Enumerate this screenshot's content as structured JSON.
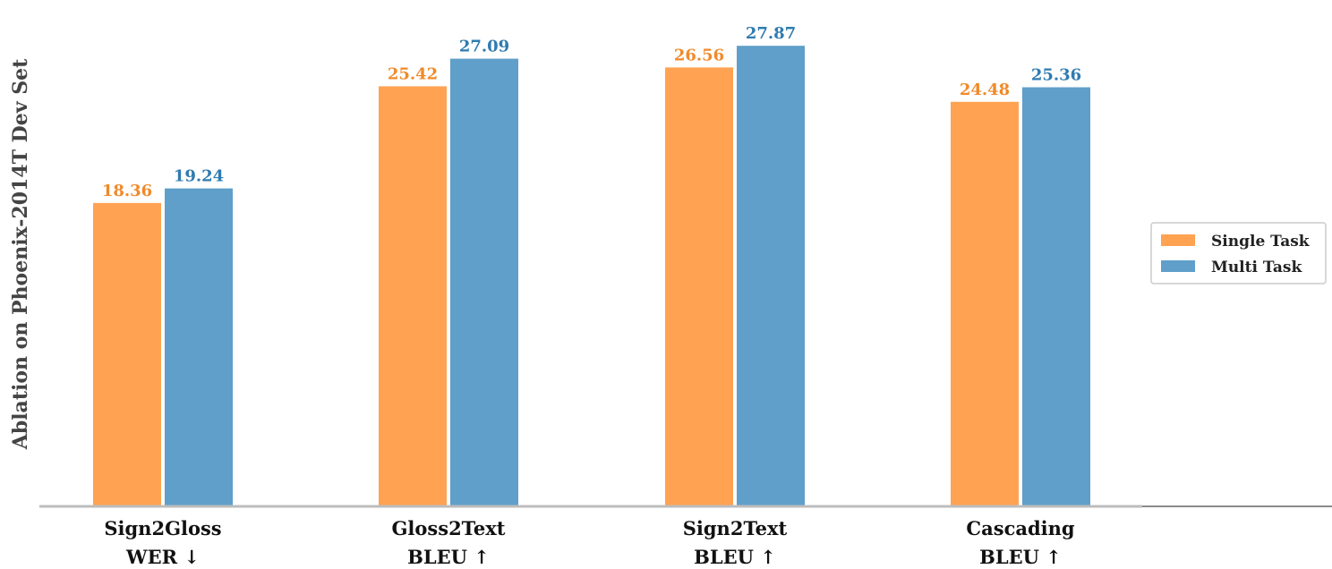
{
  "chart_data": {
    "type": "bar",
    "ylabel": "Ablation on Phoenix-2014T Dev Set",
    "xlabel": "",
    "categories": [
      {
        "name": "Sign2Gloss",
        "metric": "WER ↓"
      },
      {
        "name": "Gloss2Text",
        "metric": "BLEU ↑"
      },
      {
        "name": "Sign2Text",
        "metric": "BLEU ↑"
      },
      {
        "name": "Cascading",
        "metric": "BLEU ↑"
      }
    ],
    "series": [
      {
        "name": "Single Task",
        "color": "#FFA352",
        "label_color": "#F08A2A",
        "values": [
          18.36,
          25.42,
          26.56,
          24.48
        ]
      },
      {
        "name": "Multi Task",
        "color": "#5F9FCA",
        "label_color": "#2F7BAF",
        "values": [
          19.24,
          27.09,
          27.87,
          25.36
        ]
      }
    ],
    "value_labels": [
      [
        "18.36",
        "25.42",
        "26.56",
        "24.48"
      ],
      [
        "19.24",
        "27.09",
        "27.87",
        "25.36"
      ]
    ],
    "ylim": [
      0,
      28.8
    ],
    "grid": false,
    "legend": {
      "position": "right",
      "entries": [
        "Single Task",
        "Multi Task"
      ]
    }
  }
}
